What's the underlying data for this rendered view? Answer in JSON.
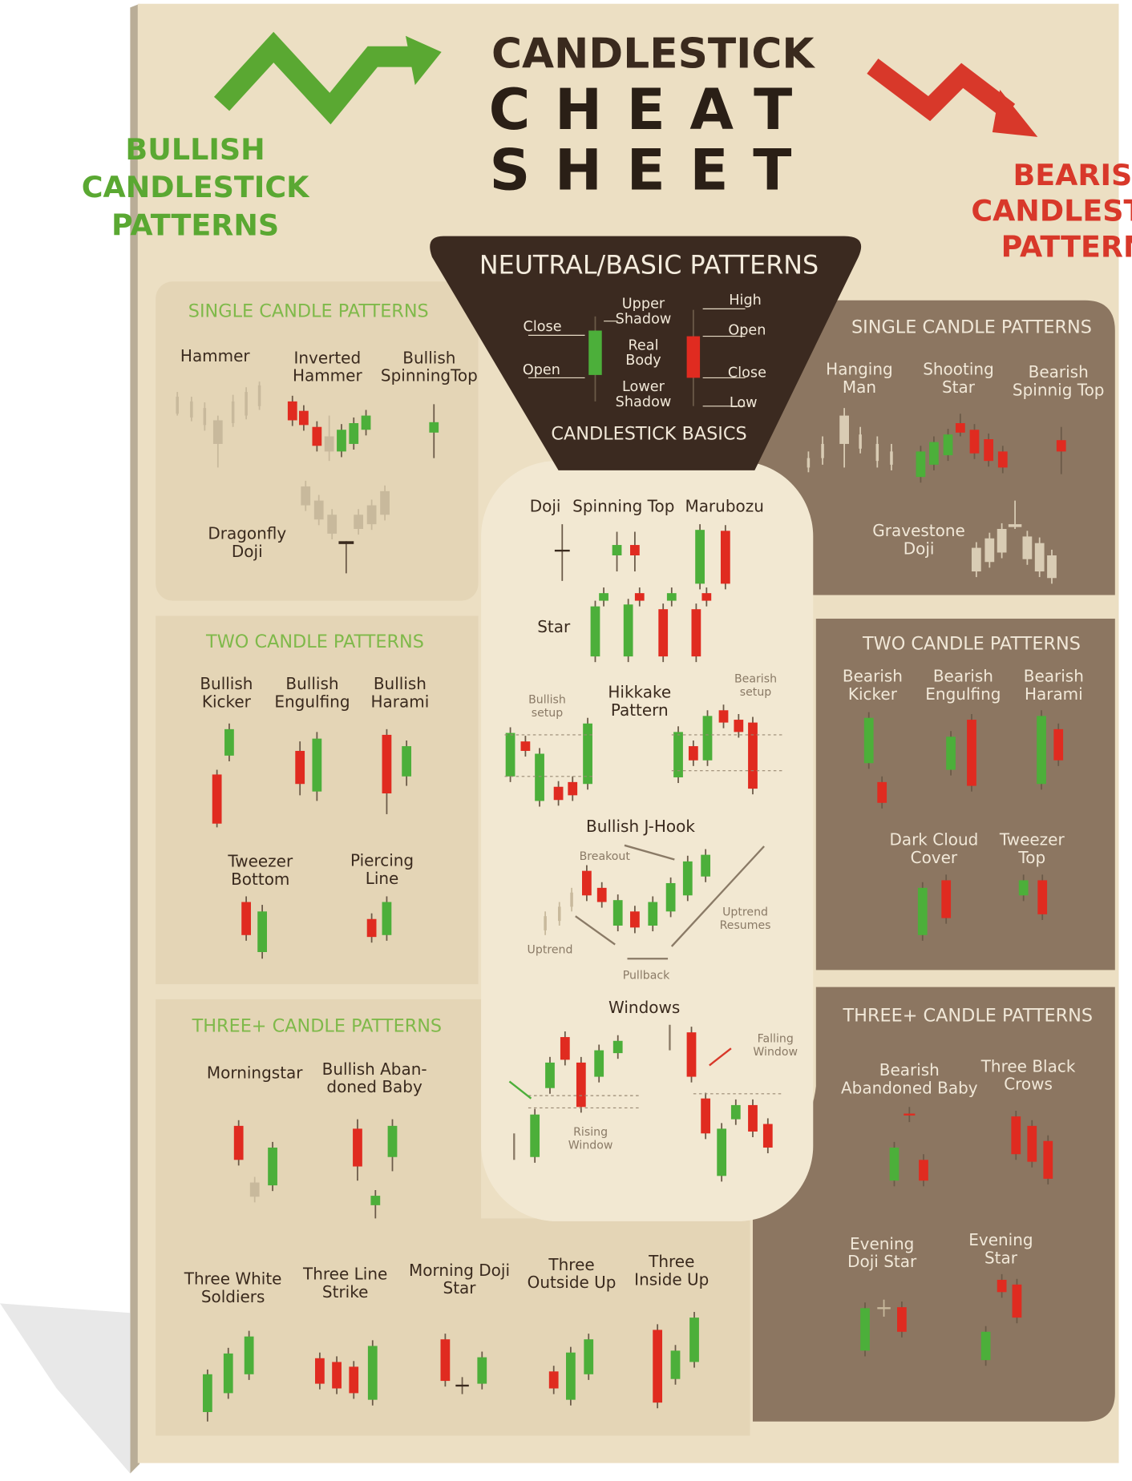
{
  "title": {
    "line1": "CANDLESTICK",
    "line2": "CHEAT",
    "line3": "SHEET"
  },
  "bullish": {
    "heading": [
      "BULLISH",
      "CANDLESTICK",
      "PATTERNS"
    ],
    "single": {
      "title": "SINGLE CANDLE PATTERNS",
      "patterns": [
        [
          "Hammer"
        ],
        [
          "Inverted",
          "Hammer"
        ],
        [
          "Bullish",
          "SpinningTop"
        ],
        [
          "Dragonfly",
          "Doji"
        ]
      ]
    },
    "two": {
      "title": "TWO CANDLE PATTERNS",
      "patterns": [
        [
          "Bullish",
          "Kicker"
        ],
        [
          "Bullish",
          "Engulfing"
        ],
        [
          "Bullish",
          "Harami"
        ],
        [
          "Tweezer",
          "Bottom"
        ],
        [
          "Piercing",
          "Line"
        ]
      ]
    },
    "three": {
      "title": "THREE+ CANDLE PATTERNS",
      "patterns": [
        [
          "Morningstar"
        ],
        [
          "Bullish Aban-",
          "doned Baby"
        ],
        [
          "Three White",
          "Soldiers"
        ],
        [
          "Three Line",
          "Strike"
        ],
        [
          "Morning Doji",
          "Star"
        ],
        [
          "Three",
          "Outside Up"
        ],
        [
          "Three",
          "Inside Up"
        ]
      ]
    }
  },
  "bearish": {
    "heading": [
      "BEARISH",
      "CANDLESTICK",
      "PATTERNS"
    ],
    "single": {
      "title": "SINGLE CANDLE PATTERNS",
      "patterns": [
        [
          "Hanging",
          "Man"
        ],
        [
          "Shooting",
          "Star"
        ],
        [
          "Bearish",
          "Spinnig Top"
        ],
        [
          "Gravestone",
          "Doji"
        ]
      ]
    },
    "two": {
      "title": "TWO CANDLE PATTERNS",
      "patterns": [
        [
          "Bearish",
          "Kicker"
        ],
        [
          "Bearish",
          "Engulfing"
        ],
        [
          "Bearish",
          "Harami"
        ],
        [
          "Dark Cloud",
          "Cover"
        ],
        [
          "Tweezer",
          "Top"
        ]
      ]
    },
    "three": {
      "title": "THREE+ CANDLE PATTERNS",
      "patterns": [
        [
          "Bearish",
          "Abandoned Baby"
        ],
        [
          "Three Black",
          "Crows"
        ],
        [
          "Evening",
          "Doji Star"
        ],
        [
          "Evening",
          "Star"
        ]
      ]
    }
  },
  "neutral": {
    "title": "NEUTRAL/BASIC PATTERNS",
    "basics": {
      "labels": [
        [
          "Close"
        ],
        [
          "Open"
        ],
        [
          "Upper",
          "Shadow"
        ],
        [
          "Real",
          "Body"
        ],
        [
          "Lower",
          "Shadow"
        ],
        [
          "High"
        ],
        [
          "Open"
        ],
        [
          "Close"
        ],
        [
          "Low"
        ]
      ],
      "caption": "CANDLESTICK BASICS"
    },
    "patterns": {
      "doji": "Doji",
      "spinning_top": "Spinning Top",
      "marubozu": "Marubozu",
      "star": "Star",
      "hikkake": [
        "Hikkake",
        "Pattern"
      ],
      "bullish_setup": [
        "Bullish",
        "setup"
      ],
      "bearish_setup": [
        "Bearish",
        "setup"
      ],
      "jhook": "Bullish J-Hook",
      "breakout": "Breakout",
      "uptrend": "Uptrend",
      "pullback": "Pullback",
      "uptrend_resumes": [
        "Uptrend",
        "Resumes"
      ],
      "windows": "Windows",
      "falling_window": [
        "Falling",
        "Window"
      ],
      "rising_window": [
        "Rising",
        "Window"
      ]
    }
  }
}
